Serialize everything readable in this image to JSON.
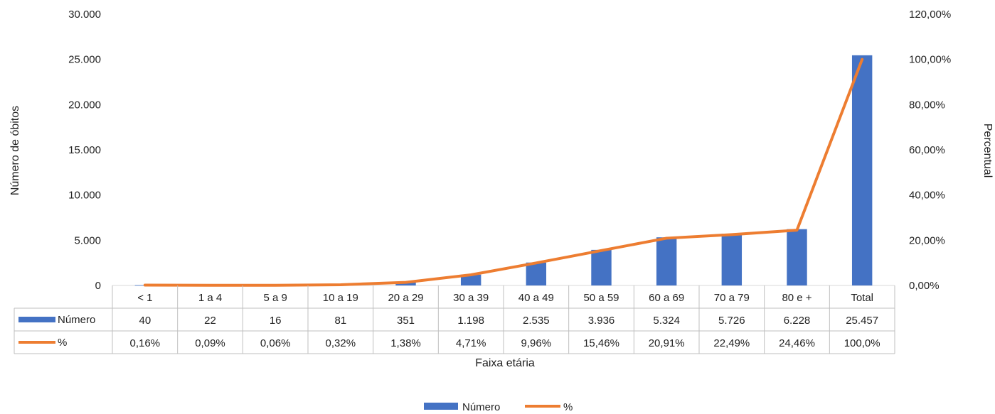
{
  "chart_data": {
    "type": "bar",
    "xlabel": "Faixa etária",
    "ylabel": "Número de óbitos",
    "y2label": "Percentual",
    "categories": [
      "< 1",
      "1 a 4",
      "5 a 9",
      "10 a 19",
      "20 a 29",
      "30 a 39",
      "40 a 49",
      "50 a 59",
      "60 a 69",
      "70 a 79",
      "80 e +",
      "Total"
    ],
    "ylim": [
      0,
      30000
    ],
    "y2lim": [
      0,
      120
    ],
    "yticks": [
      "0",
      "5.000",
      "10.000",
      "15.000",
      "20.000",
      "25.000",
      "30.000"
    ],
    "y2ticks": [
      "0,00%",
      "20,00%",
      "40,00%",
      "60,00%",
      "80,00%",
      "100,00%",
      "120,00%"
    ],
    "legend_position": "bottom",
    "data_table": true,
    "series": [
      {
        "name": "Número",
        "kind": "bar",
        "axis": "left",
        "color": "#4472C4",
        "values": [
          40,
          22,
          16,
          81,
          351,
          1198,
          2535,
          3936,
          5324,
          5726,
          6228,
          25457
        ],
        "labels": [
          "40",
          "22",
          "16",
          "81",
          "351",
          "1.198",
          "2.535",
          "3.936",
          "5.324",
          "5.726",
          "6.228",
          "25.457"
        ]
      },
      {
        "name": "%",
        "kind": "line",
        "axis": "right",
        "color": "#ED7D31",
        "values": [
          0.16,
          0.09,
          0.06,
          0.32,
          1.38,
          4.71,
          9.96,
          15.46,
          20.91,
          22.49,
          24.46,
          100.0
        ],
        "labels": [
          "0,16%",
          "0,09%",
          "0,06%",
          "0,32%",
          "1,38%",
          "4,71%",
          "9,96%",
          "15,46%",
          "20,91%",
          "22,49%",
          "24,46%",
          "100,0%"
        ]
      }
    ]
  }
}
